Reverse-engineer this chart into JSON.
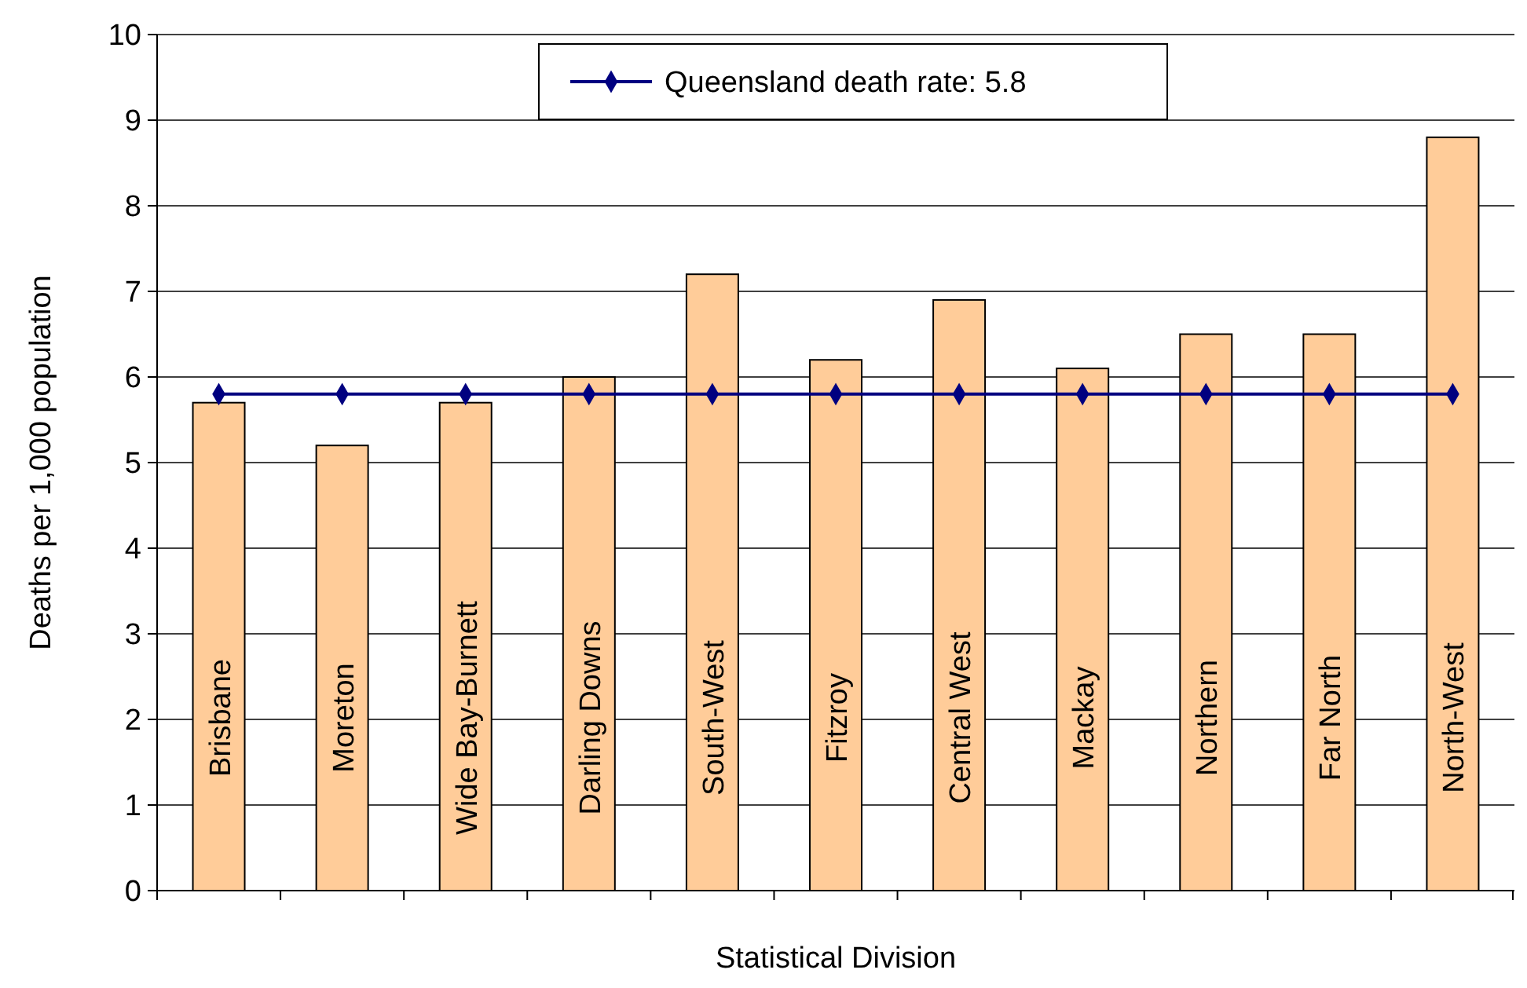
{
  "chart_data": {
    "type": "bar",
    "xlabel": "Statistical Division",
    "ylabel": "Deaths per 1,000 population",
    "categories": [
      "Brisbane",
      "Moreton",
      "Wide Bay-Burnett",
      "Darling Downs",
      "South-West",
      "Fitzroy",
      "Central West",
      "Mackay",
      "Northern",
      "Far North",
      "North-West"
    ],
    "series": [
      {
        "color": "#ffcc99",
        "values": [
          5.7,
          5.2,
          5.7,
          6.0,
          7.2,
          6.2,
          6.9,
          6.1,
          6.5,
          6.5,
          8.8
        ]
      },
      {
        "type": "line",
        "name": "Queensland death rate: 5.8",
        "color": "#000080",
        "marker": "diamond",
        "values": [
          5.8,
          5.8,
          5.8,
          5.8,
          5.8,
          5.8,
          5.8,
          5.8,
          5.8,
          5.8,
          5.8
        ]
      }
    ],
    "ylim": [
      0,
      10
    ],
    "yticks": [
      0,
      1,
      2,
      3,
      4,
      5,
      6,
      7,
      8,
      9,
      10
    ],
    "grid": "y",
    "legend": "top"
  }
}
